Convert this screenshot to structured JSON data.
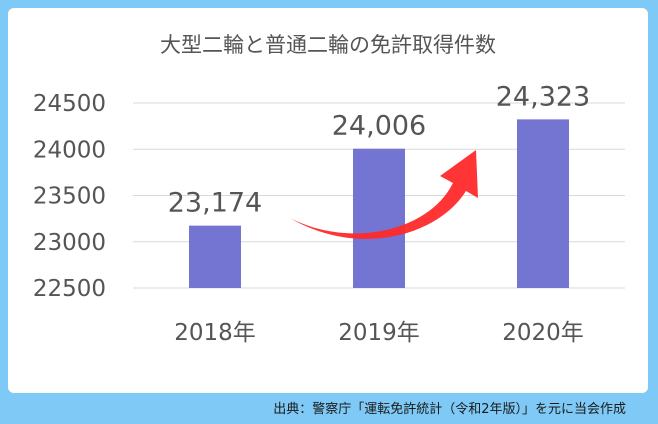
{
  "chart_data": {
    "type": "bar",
    "title": "大型二輪と普通二輪の免許取得件数",
    "categories": [
      "2018年",
      "2019年",
      "2020年"
    ],
    "values": [
      23174,
      24006,
      24323
    ],
    "value_labels": [
      "23,174",
      "24,006",
      "24,323"
    ],
    "yticks": [
      22500,
      23000,
      23500,
      24000,
      24500
    ],
    "ylim": [
      22500,
      24500
    ],
    "grid": true,
    "legend": "none",
    "xlabel": "",
    "ylabel": "",
    "annotation": "arrow-up-right"
  },
  "colors": {
    "bar": "#7474d2",
    "frame": "#7ec9f5",
    "grid": "#d9d9d9",
    "text": "#555555",
    "arrow": "#ff2a2a"
  },
  "caption": "出典：警察庁「運転免許統計（令和2年版）」を元に当会作成"
}
